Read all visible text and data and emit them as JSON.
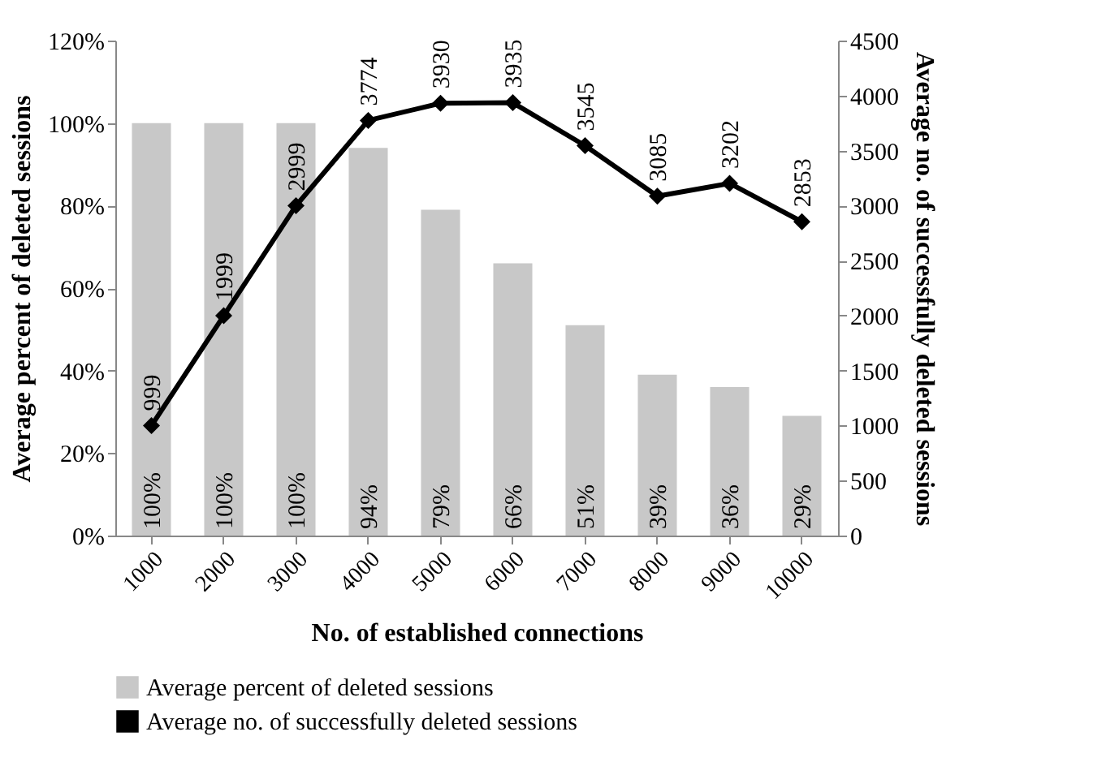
{
  "chart_data": {
    "type": "bar",
    "xlabel": "No. of  established connections",
    "ylabel": "Average percent of deleted sessions",
    "y2label": "Average no. of successfully deleted sessions",
    "categories": [
      "1000",
      "2000",
      "3000",
      "4000",
      "5000",
      "6000",
      "7000",
      "8000",
      "9000",
      "10000"
    ],
    "series": [
      {
        "name": "Average percent of deleted sessions",
        "type": "bar",
        "color": "#c8c8c8",
        "values": [
          100,
          100,
          100,
          94,
          79,
          66,
          51,
          39,
          36,
          29
        ],
        "value_labels": [
          "100%",
          "100%",
          "100%",
          "94%",
          "79%",
          "66%",
          "51%",
          "39%",
          "36%",
          "29%"
        ]
      },
      {
        "name": "Average no. of successfully deleted sessions",
        "type": "line",
        "axis": "y2",
        "color": "#000000",
        "values": [
          999,
          1999,
          2999,
          3774,
          3930,
          3935,
          3545,
          3085,
          3202,
          2853
        ],
        "value_labels": [
          "999",
          "1999",
          "2999",
          "3774",
          "3930",
          "3935",
          "3545",
          "3085",
          "3202",
          "2853"
        ]
      }
    ],
    "ylim": [
      0,
      120
    ],
    "yticks": [
      {
        "value": 0,
        "label": "0%"
      },
      {
        "value": 20,
        "label": "20%"
      },
      {
        "value": 40,
        "label": "40%"
      },
      {
        "value": 60,
        "label": "60%"
      },
      {
        "value": 80,
        "label": "80%"
      },
      {
        "value": 100,
        "label": "100%"
      },
      {
        "value": 120,
        "label": "120%"
      }
    ],
    "y2lim": [
      0,
      4500
    ],
    "y2ticks": [
      0,
      500,
      1000,
      1500,
      2000,
      2500,
      3000,
      3500,
      4000,
      4500
    ],
    "grid": false,
    "legend": "bottom",
    "marker": "diamond",
    "line_style": "solid"
  }
}
